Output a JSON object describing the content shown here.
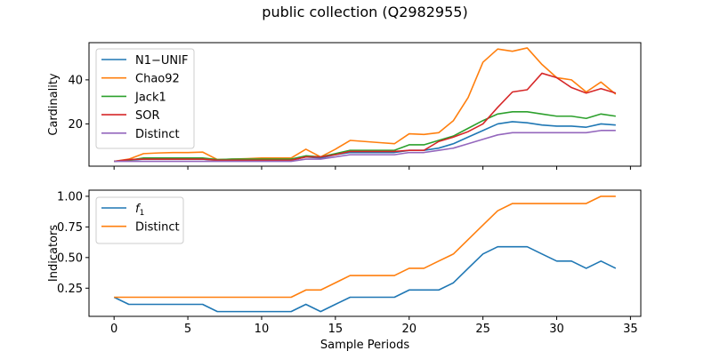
{
  "title": "public collection (Q2982955)",
  "chart_data": [
    {
      "type": "line",
      "ylabel": "Cardinality",
      "xlabel": "",
      "xlim": [
        -1.7,
        35.7
      ],
      "ylim": [
        0.8,
        56.9
      ],
      "xticks": [
        0,
        5,
        10,
        15,
        20,
        25,
        30,
        35
      ],
      "yticks": [
        20,
        40
      ],
      "show_x_tick_labels": false,
      "legend": "top-left",
      "grid": false,
      "x": [
        0,
        1,
        2,
        3,
        4,
        5,
        6,
        7,
        8,
        9,
        10,
        11,
        12,
        13,
        14,
        15,
        16,
        17,
        18,
        19,
        20,
        21,
        22,
        23,
        24,
        25,
        26,
        27,
        28,
        29,
        30,
        31,
        32,
        33,
        34
      ],
      "series": [
        {
          "name": "N1−UNIF",
          "color": "#1f77b4",
          "values": [
            3,
            3.5,
            4,
            4,
            4,
            4,
            4,
            3.5,
            3.5,
            3.5,
            3.5,
            3.5,
            3.5,
            5,
            4.5,
            6,
            7,
            7,
            7,
            7,
            8,
            8,
            9,
            11,
            14,
            17,
            20,
            21,
            20.5,
            19.5,
            19,
            19,
            18.5,
            20,
            19.5
          ]
        },
        {
          "name": "Chao92",
          "color": "#ff7f0e",
          "values": [
            3,
            4,
            6.5,
            6.8,
            7,
            7,
            7.2,
            3.8,
            4,
            4.2,
            4.5,
            4.5,
            4.5,
            8.5,
            5,
            8.5,
            12.5,
            12,
            11.5,
            11,
            15.5,
            15.2,
            16,
            21.5,
            32,
            48,
            54,
            53,
            54.5,
            47,
            41,
            40,
            34.5,
            39,
            33.5
          ]
        },
        {
          "name": "Jack1",
          "color": "#2ca02c",
          "values": [
            3,
            3.5,
            4.5,
            4.5,
            4.5,
            4.5,
            4.5,
            3.8,
            4,
            4,
            4,
            4,
            4,
            5.5,
            5,
            6.5,
            8,
            8,
            8,
            8,
            10.5,
            10.5,
            12.5,
            14.5,
            18,
            21.5,
            24.5,
            25.5,
            25.5,
            24.5,
            23.5,
            23.5,
            22.5,
            24.5,
            23.5
          ]
        },
        {
          "name": "SOR",
          "color": "#d62728",
          "values": [
            3,
            3.8,
            4,
            4,
            4,
            4,
            4,
            3.5,
            3.5,
            3.5,
            3.5,
            3.5,
            3.5,
            5,
            5,
            6,
            7.5,
            7.5,
            7.5,
            7.5,
            8,
            8,
            12,
            14,
            16.5,
            20,
            27.5,
            34.5,
            35.5,
            43,
            41,
            36.5,
            34,
            36,
            34
          ]
        },
        {
          "name": "Distinct",
          "color": "#9467bd",
          "values": [
            3,
            3,
            3,
            3,
            3,
            3,
            3,
            3,
            3,
            3,
            3,
            3,
            3,
            4,
            4,
            5,
            6,
            6,
            6,
            6,
            7,
            7,
            8,
            9,
            11,
            13,
            15,
            16,
            16,
            16,
            16,
            16,
            16,
            17,
            17
          ]
        }
      ]
    },
    {
      "type": "line",
      "ylabel": "Indicators",
      "xlabel": "Sample Periods",
      "xlim": [
        -1.7,
        35.7
      ],
      "ylim": [
        0.02,
        1.05
      ],
      "xticks": [
        0,
        5,
        10,
        15,
        20,
        25,
        30,
        35
      ],
      "yticks": [
        0.25,
        0.5,
        0.75,
        1.0
      ],
      "ytick_labels": [
        "0.25",
        "0.50",
        "0.75",
        "1.00"
      ],
      "show_x_tick_labels": true,
      "legend": "top-left",
      "grid": false,
      "x": [
        0,
        1,
        2,
        3,
        4,
        5,
        6,
        7,
        8,
        9,
        10,
        11,
        12,
        13,
        14,
        15,
        16,
        17,
        18,
        19,
        20,
        21,
        22,
        23,
        24,
        25,
        26,
        27,
        28,
        29,
        30,
        31,
        32,
        33,
        34
      ],
      "series": [
        {
          "name": "f",
          "name_subscript": "1",
          "color": "#1f77b4",
          "values": [
            0.176,
            0.118,
            0.118,
            0.118,
            0.118,
            0.118,
            0.118,
            0.059,
            0.059,
            0.059,
            0.059,
            0.059,
            0.059,
            0.118,
            0.059,
            0.118,
            0.176,
            0.176,
            0.176,
            0.176,
            0.235,
            0.235,
            0.235,
            0.294,
            0.412,
            0.529,
            0.588,
            0.588,
            0.588,
            0.529,
            0.471,
            0.471,
            0.412,
            0.471,
            0.412
          ]
        },
        {
          "name": "Distinct",
          "color": "#ff7f0e",
          "values": [
            0.176,
            0.176,
            0.176,
            0.176,
            0.176,
            0.176,
            0.176,
            0.176,
            0.176,
            0.176,
            0.176,
            0.176,
            0.176,
            0.235,
            0.235,
            0.294,
            0.353,
            0.353,
            0.353,
            0.353,
            0.412,
            0.412,
            0.471,
            0.529,
            0.647,
            0.765,
            0.882,
            0.941,
            0.941,
            0.941,
            0.941,
            0.941,
            0.941,
            1.0,
            1.0
          ]
        }
      ]
    }
  ]
}
